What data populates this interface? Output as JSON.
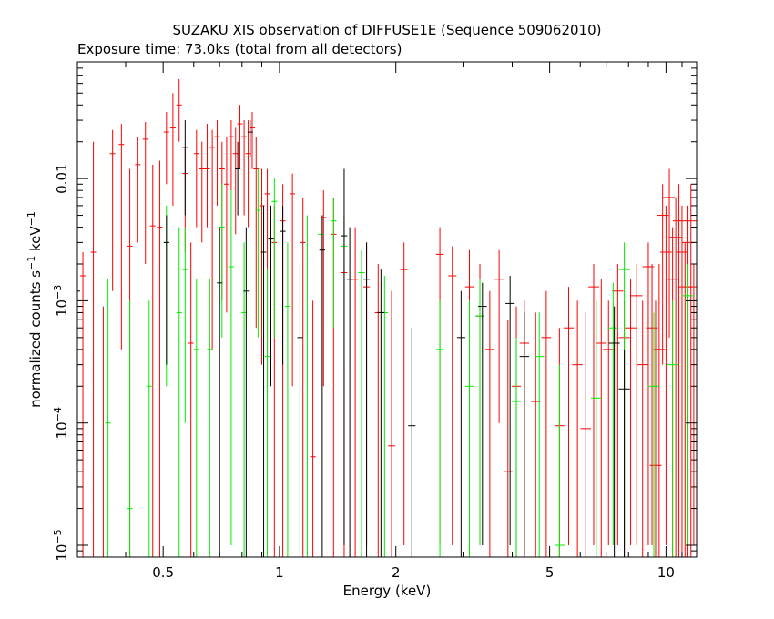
{
  "chart_data": {
    "type": "scatter",
    "title": "SUZAKU XIS observation of DIFFUSE1E (Sequence 509062010)",
    "subtitle": "Exposure time: 73.0ks (total from all detectors)",
    "xlabel": "Energy (keV)",
    "ylabel_main": "normalized counts s",
    "ylabel_sup1": "−1",
    "ylabel_mid": " keV",
    "ylabel_sup2": "−1",
    "x_scale": "log",
    "y_scale": "log",
    "xlim": [
      0.3,
      12
    ],
    "ylim": [
      8e-06,
      0.09
    ],
    "x_ticks": [
      {
        "value": 0.5,
        "label": "0.5"
      },
      {
        "value": 1,
        "label": "1"
      },
      {
        "value": 2,
        "label": "2"
      },
      {
        "value": 5,
        "label": "5"
      },
      {
        "value": 10,
        "label": "10"
      }
    ],
    "y_ticks": [
      {
        "value": 1e-05,
        "base": "10",
        "exp": "−5",
        "plain": ""
      },
      {
        "value": 0.0001,
        "base": "10",
        "exp": "−4",
        "plain": ""
      },
      {
        "value": 0.001,
        "base": "10",
        "exp": "−3",
        "plain": ""
      },
      {
        "value": 0.01,
        "base": "",
        "exp": "",
        "plain": "0.01"
      }
    ],
    "series": [
      {
        "color": "#ff0000",
        "points": [
          [
            0.31,
            0.0016,
            0.0025,
            8e-06
          ],
          [
            0.33,
            0.0025,
            0.02,
            8e-06
          ],
          [
            0.35,
            5.8e-05,
            0.0009,
            8e-06
          ],
          [
            0.37,
            0.016,
            0.025,
            0.0012
          ],
          [
            0.39,
            0.019,
            0.028,
            0.0004
          ],
          [
            0.41,
            0.0028,
            0.012,
            8e-06
          ],
          [
            0.43,
            0.013,
            0.022,
            0.003
          ],
          [
            0.45,
            0.021,
            0.029,
            0.002
          ],
          [
            0.47,
            0.0041,
            0.013,
            8e-06
          ],
          [
            0.49,
            0.004,
            0.014,
            8e-06
          ],
          [
            0.51,
            0.024,
            0.035,
            0.009
          ],
          [
            0.53,
            0.026,
            0.05,
            0.006
          ],
          [
            0.55,
            0.04,
            0.065,
            0.02
          ],
          [
            0.57,
            0.011,
            0.018,
            0.0025
          ],
          [
            0.59,
            0.00045,
            0.003,
            8e-06
          ],
          [
            0.61,
            0.016,
            0.025,
            0.004
          ],
          [
            0.63,
            0.012,
            0.02,
            0.003
          ],
          [
            0.65,
            0.012,
            0.028,
            0.004
          ],
          [
            0.67,
            0.018,
            0.025,
            0.0004
          ],
          [
            0.69,
            0.022,
            0.03,
            0.006
          ],
          [
            0.71,
            0.012,
            0.02,
            0.001
          ],
          [
            0.73,
            0.009,
            0.022,
            0.0008
          ],
          [
            0.75,
            0.022,
            0.03,
            0.008
          ],
          [
            0.77,
            0.016,
            0.026,
            0.0035
          ],
          [
            0.79,
            0.028,
            0.04,
            0.012
          ],
          [
            0.81,
            0.022,
            0.03,
            0.005
          ],
          [
            0.83,
            0.016,
            0.03,
            0.004
          ],
          [
            0.85,
            0.026,
            0.035,
            0.012
          ],
          [
            0.87,
            0.012,
            0.022,
            0.0006
          ],
          [
            0.9,
            0.006,
            0.012,
            0.0003
          ],
          [
            0.93,
            0.0075,
            0.012,
            0.0002
          ],
          [
            0.97,
            0.003,
            0.006,
            8e-06
          ],
          [
            1.02,
            0.0045,
            0.009,
            8e-06
          ],
          [
            1.08,
            0.0075,
            0.011,
            0.0002
          ],
          [
            1.15,
            0.003,
            0.007,
            8e-06
          ],
          [
            1.22,
            5.3e-05,
            0.001,
            8e-06
          ],
          [
            1.3,
            0.0048,
            0.008,
            0.0002
          ],
          [
            1.38,
            0.0035,
            0.007,
            8e-06
          ],
          [
            1.47,
            0.0017,
            0.005,
            8e-06
          ],
          [
            1.57,
            0.0015,
            0.004,
            8e-06
          ],
          [
            1.68,
            0.0013,
            0.003,
            1e-05
          ],
          [
            1.8,
            0.0008,
            0.002,
            8e-06
          ],
          [
            1.95,
            6.5e-05,
            0.0012,
            8e-06
          ],
          [
            2.1,
            0.0018,
            0.003,
            1e-05
          ],
          [
            2.6,
            0.0024,
            0.004,
            1e-05
          ],
          [
            2.8,
            0.0016,
            0.0028,
            1e-05
          ],
          [
            3.1,
            0.0013,
            0.0026,
            1e-05
          ],
          [
            3.3,
            0.00075,
            0.002,
            1e-05
          ],
          [
            3.5,
            0.0004,
            0.0012,
            8e-06
          ],
          [
            3.7,
            0.0015,
            0.0026,
            0.0001
          ],
          [
            3.9,
            4e-05,
            0.0007,
            8e-06
          ],
          [
            4.1,
            0.0002,
            0.0009,
            8e-06
          ],
          [
            4.3,
            0.00045,
            0.001,
            8e-06
          ],
          [
            4.6,
            0.00015,
            0.0008,
            8e-06
          ],
          [
            4.9,
            0.0005,
            0.0012,
            8e-06
          ],
          [
            5.3,
            9.5e-05,
            0.0006,
            8e-06
          ],
          [
            5.6,
            0.0006,
            0.0013,
            1e-05
          ],
          [
            5.9,
            0.0003,
            0.001,
            8e-06
          ],
          [
            6.2,
            9e-05,
            0.0008,
            8e-06
          ],
          [
            6.5,
            0.0013,
            0.002,
            1e-05
          ],
          [
            6.8,
            0.00045,
            0.0015,
            8e-06
          ],
          [
            7.1,
            0.0004,
            0.001,
            1e-05
          ],
          [
            7.5,
            0.0012,
            0.002,
            1e-05
          ],
          [
            7.8,
            0.0005,
            0.001,
            8e-06
          ],
          [
            8.1,
            0.0006,
            0.0015,
            1e-05
          ],
          [
            8.4,
            0.0011,
            0.002,
            1e-05
          ],
          [
            8.7,
            0.0003,
            0.001,
            8e-06
          ],
          [
            9.0,
            0.0019,
            0.003,
            1e-05
          ],
          [
            9.2,
            0.0006,
            0.002,
            1e-05
          ],
          [
            9.4,
            4.5e-05,
            0.001,
            8e-06
          ],
          [
            9.6,
            0.0004,
            0.002,
            8e-06
          ],
          [
            9.8,
            0.005,
            0.009,
            0.0003
          ],
          [
            10.0,
            0.0025,
            0.006,
            1e-05
          ],
          [
            10.2,
            0.007,
            0.012,
            0.0005
          ],
          [
            10.4,
            0.0015,
            0.004,
            8e-06
          ],
          [
            10.6,
            0.0033,
            0.007,
            8e-06
          ],
          [
            10.8,
            0.0045,
            0.009,
            8e-06
          ],
          [
            11.0,
            0.0025,
            0.006,
            8e-06
          ],
          [
            11.2,
            0.0013,
            0.003,
            8e-06
          ],
          [
            11.4,
            0.003,
            0.006,
            8e-06
          ],
          [
            11.6,
            0.0045,
            0.009,
            8e-06
          ],
          [
            11.8,
            0.0013,
            0.002,
            1e-05
          ]
        ]
      },
      {
        "color": "#00ee00",
        "points": [
          [
            0.36,
            0.0001,
            0.0015,
            8e-06
          ],
          [
            0.41,
            2e-05,
            0.001,
            8e-06
          ],
          [
            0.46,
            0.0002,
            0.001,
            8e-06
          ],
          [
            0.51,
            0.003,
            0.006,
            0.0002
          ],
          [
            0.55,
            0.0008,
            0.004,
            8e-06
          ],
          [
            0.57,
            0.0018,
            0.004,
            0.0001
          ],
          [
            0.61,
            0.0004,
            0.0015,
            8e-06
          ],
          [
            0.66,
            0.0004,
            0.0015,
            8e-06
          ],
          [
            0.71,
            0.004,
            0.009,
            0.0005
          ],
          [
            0.75,
            0.0019,
            0.008,
            1e-05
          ],
          [
            0.81,
            0.0008,
            0.003,
            8e-06
          ],
          [
            0.88,
            0.0055,
            0.012,
            0.0005
          ],
          [
            0.93,
            0.00035,
            0.0018,
            8e-06
          ],
          [
            0.97,
            0.0065,
            0.01,
            0.0005
          ],
          [
            1.05,
            0.0009,
            0.003,
            8e-06
          ],
          [
            1.18,
            0.0022,
            0.005,
            8e-06
          ],
          [
            1.28,
            0.0035,
            0.006,
            0.0002
          ],
          [
            1.38,
            0.0045,
            0.007,
            0.0006
          ],
          [
            1.47,
            0.0028,
            0.005,
            0.0003
          ],
          [
            1.63,
            0.0017,
            0.0026,
            8e-06
          ],
          [
            1.87,
            0.0008,
            0.0016,
            8e-06
          ],
          [
            2.6,
            0.0004,
            0.001,
            8e-06
          ],
          [
            3.1,
            0.0002,
            0.001,
            8e-06
          ],
          [
            3.3,
            0.00075,
            0.0015,
            1e-05
          ],
          [
            4.1,
            0.00015,
            0.0005,
            8e-06
          ],
          [
            4.7,
            0.00035,
            0.0008,
            8e-06
          ],
          [
            5.3,
            1e-05,
            0.0003,
            8e-06
          ],
          [
            6.6,
            0.00016,
            0.001,
            8e-06
          ],
          [
            7.3,
            0.0006,
            0.0014,
            1e-05
          ],
          [
            7.8,
            0.0018,
            0.003,
            1e-05
          ],
          [
            9.3,
            0.0002,
            0.0008,
            8e-06
          ],
          [
            10.4,
            0.0003,
            0.001,
            8e-06
          ],
          [
            11.4,
            0.0011,
            0.002,
            1e-05
          ]
        ]
      },
      {
        "color": "#000000",
        "points": [
          [
            0.3,
            0.0012,
            0.0014,
            8e-06
          ],
          [
            0.51,
            0.003,
            0.005,
            0.0003
          ],
          [
            0.57,
            0.018,
            0.03,
            0.005
          ],
          [
            0.7,
            0.0014,
            0.004,
            8e-06
          ],
          [
            0.82,
            0.0012,
            0.004,
            8e-06
          ],
          [
            0.91,
            0.0025,
            0.006,
            8e-06
          ],
          [
            0.95,
            0.0032,
            0.006,
            0.0002
          ],
          [
            1.02,
            0.0037,
            0.006,
            0.0003
          ],
          [
            1.13,
            0.0005,
            0.002,
            8e-06
          ],
          [
            1.29,
            0.0026,
            0.005,
            8e-06
          ],
          [
            1.47,
            0.0034,
            0.012,
            1e-05
          ],
          [
            1.52,
            0.0015,
            0.004,
            8e-06
          ],
          [
            1.68,
            0.0015,
            0.003,
            8e-06
          ],
          [
            1.83,
            0.0008,
            0.0018,
            8e-06
          ],
          [
            2.2,
            9.5e-05,
            0.0006,
            8e-06
          ],
          [
            2.95,
            0.0005,
            0.0012,
            8e-06
          ],
          [
            3.35,
            0.0009,
            0.0014,
            1e-05
          ],
          [
            3.95,
            0.00095,
            0.0016,
            1e-05
          ],
          [
            4.3,
            0.00035,
            0.0008,
            8e-06
          ],
          [
            7.35,
            0.00045,
            0.0009,
            8e-06
          ],
          [
            7.8,
            0.00019,
            0.0004,
            8e-06
          ],
          [
            0.84,
            0.024,
            0.03,
            0.015
          ],
          [
            0.78,
            0.012,
            0.02,
            0.005
          ]
        ]
      }
    ]
  }
}
